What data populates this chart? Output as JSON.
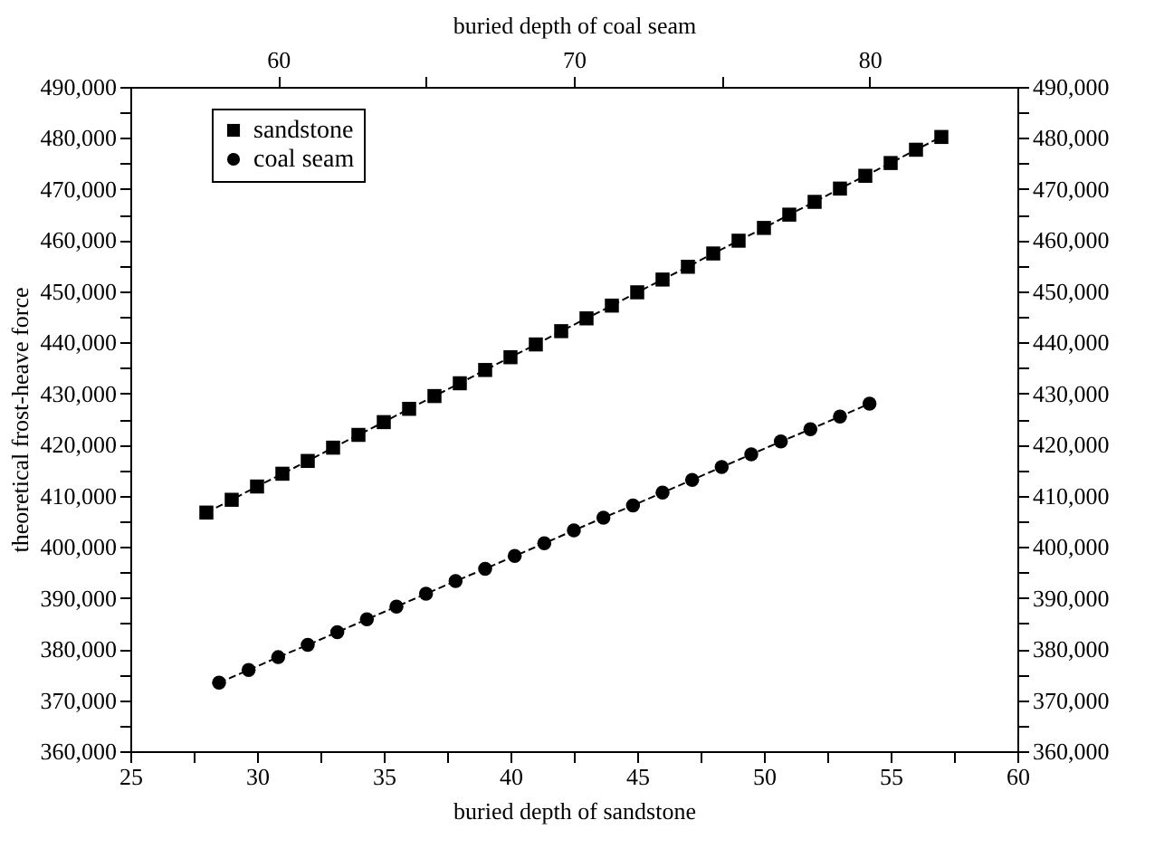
{
  "chart_data": {
    "type": "line",
    "xlabel": "buried depth of sandstone",
    "x2label": "buried depth of coal seam",
    "ylabel": "theoretical frost-heave force",
    "series": [
      {
        "name": "sandstone",
        "color": "#000000",
        "marker": "square",
        "x": [
          28,
          29,
          30,
          31,
          32,
          33,
          34,
          35,
          36,
          37,
          38,
          39,
          40,
          41,
          42,
          43,
          44,
          45,
          46,
          47,
          48,
          49,
          50,
          51,
          52,
          53,
          54,
          55,
          56,
          57
        ],
        "values": [
          406700,
          409200,
          411800,
          414300,
          416800,
          419400,
          421900,
          424400,
          427000,
          429500,
          432000,
          434600,
          437100,
          439600,
          442200,
          444700,
          447200,
          449800,
          452300,
          454800,
          457400,
          459900,
          462400,
          465000,
          467500,
          470100,
          472600,
          475100,
          477700,
          480200
        ]
      },
      {
        "name": "coal seam",
        "color": "#000000",
        "marker": "circle",
        "axis": "x2",
        "x": [
          58,
          59,
          60,
          61,
          62,
          63,
          64,
          65,
          66,
          67,
          68,
          69,
          70,
          71,
          72,
          73,
          74,
          75,
          76,
          77,
          78,
          79,
          80
        ],
        "values": [
          373400,
          375900,
          378400,
          380800,
          383300,
          385800,
          388300,
          390800,
          393300,
          395700,
          398200,
          400700,
          403200,
          405700,
          408100,
          410600,
          413100,
          415600,
          418100,
          420600,
          423000,
          425500,
          428000
        ]
      }
    ],
    "line_style": "dashed",
    "grid": false,
    "legend": "top left",
    "xlim": [
      25,
      60
    ],
    "xticks": [
      25,
      {
        "value": 27.5,
        "label": null
      },
      30,
      {
        "value": 32.5,
        "label": null
      },
      35,
      {
        "value": 37.5,
        "label": null
      },
      40,
      {
        "value": 42.5,
        "label": null
      },
      45,
      {
        "value": 47.5,
        "label": null
      },
      50,
      {
        "value": 52.5,
        "label": null
      },
      55,
      {
        "value": 57.5,
        "label": null
      },
      60
    ],
    "x2lim": [
      55,
      85
    ],
    "x2ticks": [
      60,
      {
        "value": 65,
        "label": null
      },
      70,
      {
        "value": 75,
        "label": null
      },
      80
    ],
    "ylim": [
      360000,
      490000
    ],
    "yticks": [
      {
        "value": 360000,
        "label": "360,000"
      },
      {
        "value": 365000,
        "label": null
      },
      {
        "value": 370000,
        "label": "370,000"
      },
      {
        "value": 375000,
        "label": null
      },
      {
        "value": 380000,
        "label": "380,000"
      },
      {
        "value": 385000,
        "label": null
      },
      {
        "value": 390000,
        "label": "390,000"
      },
      {
        "value": 395000,
        "label": null
      },
      {
        "value": 400000,
        "label": "400,000"
      },
      {
        "value": 405000,
        "label": null
      },
      {
        "value": 410000,
        "label": "410,000"
      },
      {
        "value": 415000,
        "label": null
      },
      {
        "value": 420000,
        "label": "420,000"
      },
      {
        "value": 425000,
        "label": null
      },
      {
        "value": 430000,
        "label": "430,000"
      },
      {
        "value": 435000,
        "label": null
      },
      {
        "value": 440000,
        "label": "440,000"
      },
      {
        "value": 445000,
        "label": null
      },
      {
        "value": 450000,
        "label": "450,000"
      },
      {
        "value": 455000,
        "label": null
      },
      {
        "value": 460000,
        "label": "460,000"
      },
      {
        "value": 465000,
        "label": null
      },
      {
        "value": 470000,
        "label": "470,000"
      },
      {
        "value": 475000,
        "label": null
      },
      {
        "value": 480000,
        "label": "480,000"
      },
      {
        "value": 485000,
        "label": null
      },
      {
        "value": 490000,
        "label": "490,000"
      }
    ],
    "y2lim": [
      360000,
      490000
    ],
    "y2ticks": [
      {
        "value": 360000,
        "label": "360,000"
      },
      {
        "value": 365000,
        "label": null
      },
      {
        "value": 370000,
        "label": "370,000"
      },
      {
        "value": 375000,
        "label": null
      },
      {
        "value": 380000,
        "label": "380,000"
      },
      {
        "value": 385000,
        "label": null
      },
      {
        "value": 390000,
        "label": "390,000"
      },
      {
        "value": 395000,
        "label": null
      },
      {
        "value": 400000,
        "label": "400,000"
      },
      {
        "value": 405000,
        "label": null
      },
      {
        "value": 410000,
        "label": "410,000"
      },
      {
        "value": 415000,
        "label": null
      },
      {
        "value": 420000,
        "label": "420,000"
      },
      {
        "value": 425000,
        "label": null
      },
      {
        "value": 430000,
        "label": "430,000"
      },
      {
        "value": 435000,
        "label": null
      },
      {
        "value": 440000,
        "label": "440,000"
      },
      {
        "value": 445000,
        "label": null
      },
      {
        "value": 450000,
        "label": "450,000"
      },
      {
        "value": 455000,
        "label": null
      },
      {
        "value": 460000,
        "label": "460,000"
      },
      {
        "value": 465000,
        "label": null
      },
      {
        "value": 470000,
        "label": "470,000"
      },
      {
        "value": 475000,
        "label": null
      },
      {
        "value": 480000,
        "label": "480,000"
      },
      {
        "value": 485000,
        "label": null
      },
      {
        "value": 490000,
        "label": "490,000"
      }
    ]
  }
}
